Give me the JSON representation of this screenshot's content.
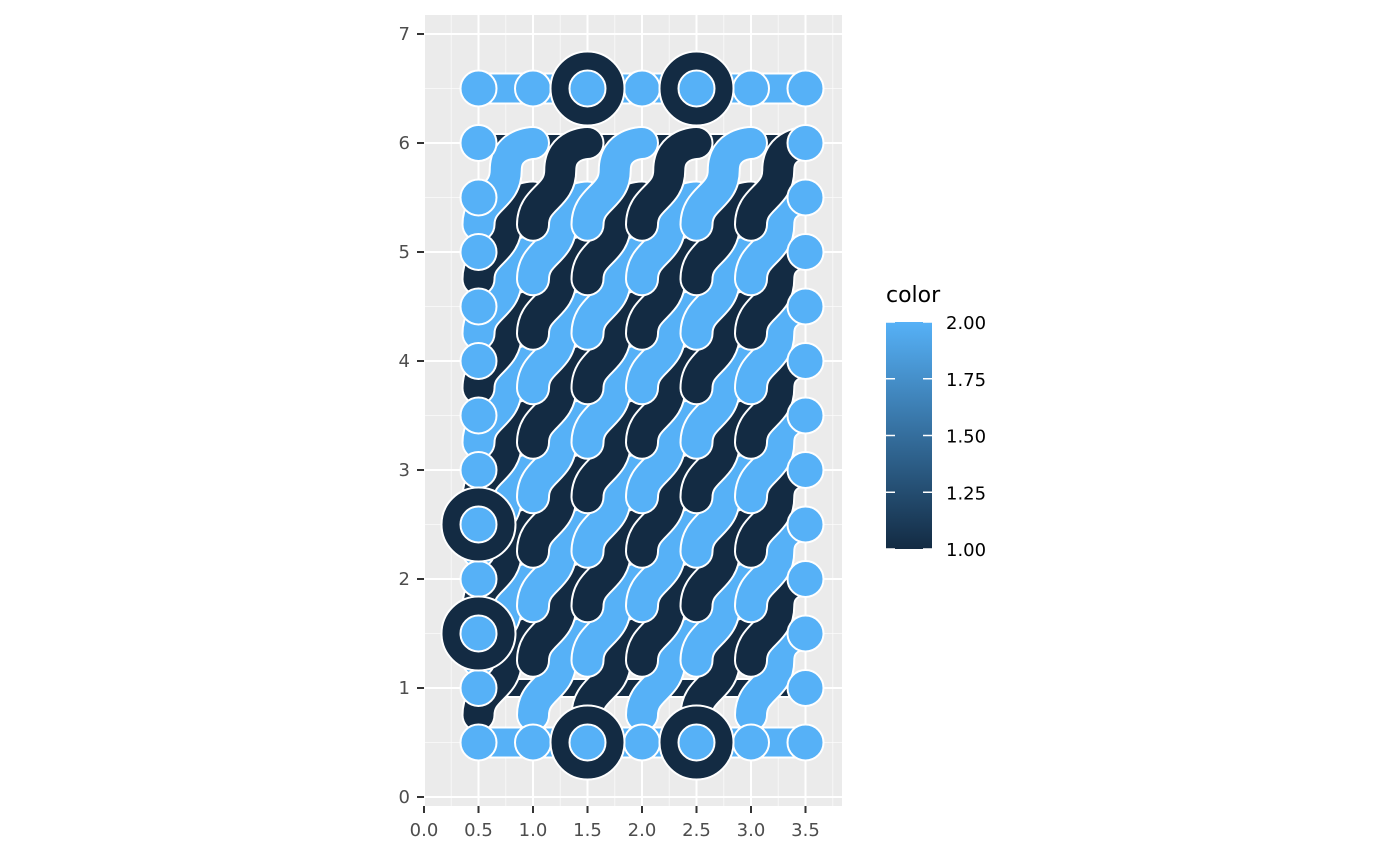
{
  "chart_data": {
    "type": "truchet-tile-plot",
    "title": "",
    "xlabel": "",
    "ylabel": "",
    "xlim": [
      0,
      3.85
    ],
    "ylim": [
      -0.1,
      7.15
    ],
    "x_ticks": [
      0,
      0.5,
      1,
      1.5,
      2,
      2.5,
      3,
      3.5
    ],
    "x_tick_labels": [
      "0.0",
      "0.5",
      "1.0",
      "1.5",
      "2.0",
      "2.5",
      "3.0",
      "3.5"
    ],
    "y_ticks": [
      0,
      1,
      2,
      3,
      4,
      5,
      6,
      7
    ],
    "y_tick_labels": [
      "0",
      "1",
      "2",
      "3",
      "4",
      "5",
      "6",
      "7"
    ],
    "grid": true,
    "legend": {
      "title": "color",
      "position": "right",
      "type": "continuous-colorbar",
      "range": [
        1.0,
        2.0
      ],
      "breaks": [
        2.0,
        1.75,
        1.5,
        1.25,
        1.0
      ],
      "labels": [
        "2.00",
        "1.75",
        "1.50",
        "1.25",
        "1.00"
      ],
      "low_color": "#132B43",
      "high_color": "#56B1F7"
    },
    "colors": {
      "panel_background": "#ebebeb",
      "grid": "#ffffff",
      "dark_fill": "#132B43",
      "light_fill": "#56B1F7",
      "outline": "#ffffff"
    },
    "tiles": {
      "description": "Truchet tiles: light (color=2) rows at y = k + 0.5 connected by dark (color=1) bands at integer y; diagonal S-curves connect regions",
      "columns_x": [
        0.5,
        1.0,
        1.5,
        2.0,
        2.5,
        3.0,
        3.5
      ],
      "rows_y": [
        0.5,
        1.0,
        1.5,
        2.0,
        2.5,
        3.0,
        3.5,
        4.0,
        4.5,
        5.0,
        5.5,
        6.0,
        6.5
      ],
      "color_values": [
        1,
        2
      ]
    }
  }
}
